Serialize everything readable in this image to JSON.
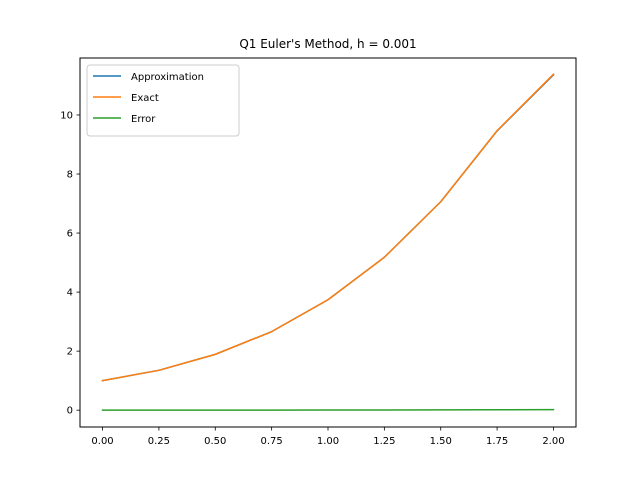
{
  "chart_data": {
    "type": "line",
    "title": "Q1 Euler's Method, h = 0.001",
    "xlabel": "",
    "ylabel": "",
    "xlim": [
      -0.1,
      2.1
    ],
    "ylim": [
      -0.57,
      11.93
    ],
    "xticks": [
      0.0,
      0.25,
      0.5,
      0.75,
      1.0,
      1.25,
      1.5,
      1.75,
      2.0
    ],
    "xtick_labels": [
      "0.00",
      "0.25",
      "0.50",
      "0.75",
      "1.00",
      "1.25",
      "1.50",
      "1.75",
      "2.00"
    ],
    "yticks": [
      0,
      2,
      4,
      6,
      8,
      10
    ],
    "ytick_labels": [
      "0",
      "2",
      "4",
      "6",
      "8",
      "10"
    ],
    "grid": false,
    "legend_position": "upper-left",
    "series": [
      {
        "name": "Approximation",
        "color": "#1f77b4",
        "x": [
          0.0,
          0.25,
          0.5,
          0.75,
          1.0,
          1.25,
          1.5,
          1.75,
          2.0
        ],
        "y": [
          1.0,
          1.35,
          1.89,
          2.66,
          3.74,
          5.18,
          7.06,
          9.46,
          11.36
        ]
      },
      {
        "name": "Exact",
        "color": "#ff7f0e",
        "x": [
          0.0,
          0.25,
          0.5,
          0.75,
          1.0,
          1.25,
          1.5,
          1.75,
          2.0
        ],
        "y": [
          1.0,
          1.35,
          1.89,
          2.66,
          3.74,
          5.18,
          7.06,
          9.47,
          11.38
        ]
      },
      {
        "name": "Error",
        "color": "#2ca02c",
        "x": [
          0.0,
          0.25,
          0.5,
          0.75,
          1.0,
          1.25,
          1.5,
          1.75,
          2.0
        ],
        "y": [
          0.0,
          0.001,
          0.002,
          0.003,
          0.005,
          0.007,
          0.01,
          0.013,
          0.02
        ]
      }
    ]
  }
}
